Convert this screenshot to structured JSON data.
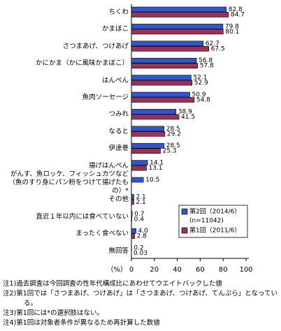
{
  "chart_data": {
    "type": "bar",
    "orientation": "horizontal",
    "categories": [
      "ちくわ",
      "かまぼこ",
      "さつまあげ、つけあげ",
      "かにかま（かに風味かまぼこ）",
      "はんぺん",
      "魚肉ソーセージ",
      "つみれ",
      "なると",
      "伊達巻",
      "揚げはんぺん",
      "がんす、魚ロッケ、フィッシュカツなど（魚のすり身にパン粉をつけて揚げたもの）*",
      "その他",
      "直近１年以内には食べていない",
      "まったく食べない",
      "無回答"
    ],
    "series": [
      {
        "name": "第2回（2014/6）",
        "legend_note": "(n=11042)",
        "color": "#3355cc",
        "values": [
          82.8,
          79.8,
          62.7,
          56.8,
          52.1,
          50.9,
          38.9,
          28.5,
          28.5,
          14.1,
          10.5,
          2.1,
          0.7,
          4.0,
          0.2
        ],
        "value_labels": [
          "82.8",
          "79.8",
          "62.7",
          "56.8",
          "52.1",
          "50.9",
          "38.9",
          "28.5",
          "28.5",
          "14.1",
          "10.5",
          "2.1",
          "0.7",
          "4.0",
          "0.2"
        ]
      },
      {
        "name": "第1回（2011/6）",
        "color": "#993355",
        "values": [
          84.7,
          80.1,
          67.5,
          57.8,
          52.9,
          54.8,
          41.5,
          29.2,
          25.3,
          13.1,
          null,
          2.1,
          0.4,
          2.8,
          0.03
        ],
        "value_labels": [
          "84.7",
          "80.1",
          "67.5",
          "57.8",
          "52.9",
          "54.8",
          "41.5",
          "29.2",
          "25.3",
          "13.1",
          null,
          "2.1",
          "0.4",
          "2.8",
          "0.03"
        ]
      }
    ],
    "xlabel": "（%）",
    "xlim": [
      0,
      100
    ],
    "xticks": [
      0,
      20,
      40,
      60,
      80,
      100
    ],
    "notes": [
      "注1)過去調査は今回調査の性年代構成比にあわせてウエイトバックした値",
      "注2)第1回では「さつまあげ、つけあげ」は「さつまあげ、つけあげ、てんぷら」となっている。",
      "注3)第1回には*の選択肢はない。",
      "注4)第1回は対象者条件が異なるため再計算した数値"
    ]
  }
}
